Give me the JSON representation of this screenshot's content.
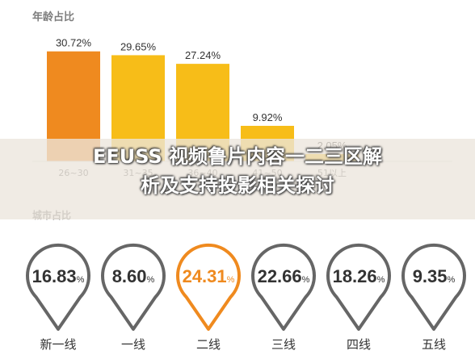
{
  "sections": {
    "age_title": "年龄占比",
    "city_title": "城市占比"
  },
  "overlay": {
    "line1": "EEUSS 视频鲁片内容一二三区解",
    "line2": "析及支持投影相关探讨"
  },
  "colors": {
    "orange": "#ef8a1f",
    "yellow": "#f7bd18",
    "pin_gray": "#666666",
    "pin_highlight": "#ef8a1f"
  },
  "chart_data": [
    {
      "type": "bar",
      "title": "年龄占比",
      "categories": [
        "26-30",
        "",
        "",
        "41-50",
        "51以上"
      ],
      "category_labels_visible": [
        "26~30",
        "31~35",
        "36~40",
        "41~50",
        "51以上"
      ],
      "values": [
        30.72,
        29.65,
        27.24,
        9.92,
        2.05
      ],
      "value_labels": [
        "30.72%",
        "29.65%",
        "27.24%",
        "9.92%",
        "2.05%"
      ],
      "highlight_index": 0,
      "ylim": [
        0,
        32
      ]
    },
    {
      "type": "table",
      "title": "城市占比",
      "categories": [
        "新一线",
        "一线",
        "二线",
        "三线",
        "四线",
        "五线"
      ],
      "values": [
        16.83,
        8.6,
        24.31,
        22.66,
        18.26,
        9.35
      ],
      "value_labels": [
        "16.83",
        "8.60",
        "24.31",
        "22.66",
        "18.26",
        "9.35"
      ],
      "unit": "%",
      "highlight_index": 2
    }
  ]
}
